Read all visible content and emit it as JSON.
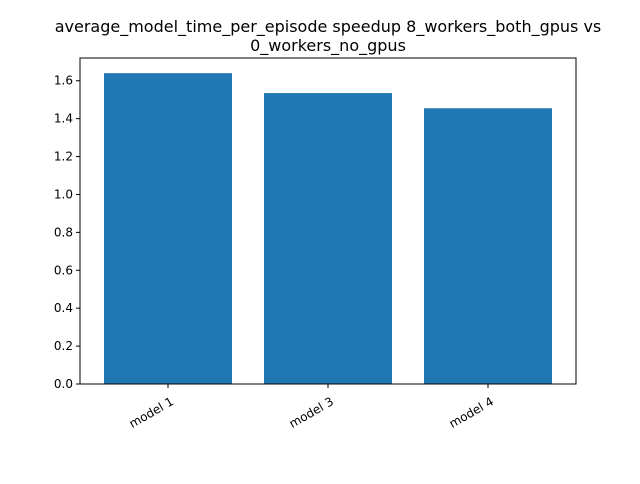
{
  "chart_data": {
    "type": "bar",
    "title_lines": [
      "average_model_time_per_episode speedup 8_workers_both_gpus vs",
      "0_workers_no_gpus"
    ],
    "categories": [
      "model 1",
      "model 3",
      "model 4"
    ],
    "values": [
      1.64,
      1.535,
      1.455
    ],
    "ylim": [
      0,
      1.72
    ],
    "yticks": [
      0.0,
      0.2,
      0.4,
      0.6,
      0.8,
      1.0,
      1.2,
      1.4,
      1.6
    ],
    "ytick_labels": [
      "0.0",
      "0.2",
      "0.4",
      "0.6",
      "0.8",
      "1.0",
      "1.2",
      "1.4",
      "1.6"
    ],
    "xlabel": "",
    "ylabel": "",
    "grid": false,
    "x_tick_label_rotation": "rotated",
    "bar_color": "#1f77b4"
  }
}
